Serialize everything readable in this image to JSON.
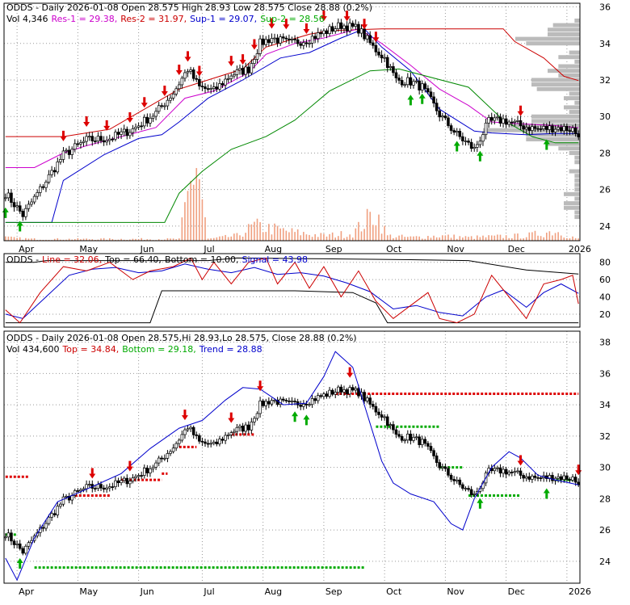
{
  "chart_data": [
    {
      "type": "candlestick",
      "panel": "price",
      "header": [
        {
          "text": "ODDS - Daily 2026-01-08 Open 28.575  High 28.93  Low 28.575  Close 28.88 (0.2%)",
          "color": "#000000"
        }
      ],
      "header2": [
        {
          "text": "Vol 4,346",
          "color": "#000000"
        },
        {
          "text": "Res-1 = 29.38,",
          "color": "#cc00cc"
        },
        {
          "text": "Res-2 = 31.97,",
          "color": "#cc0000"
        },
        {
          "text": "Sup-1 = 29.07,",
          "color": "#0000cc"
        },
        {
          "text": "Sup-2 = 28.56",
          "color": "#00aa00"
        }
      ],
      "ylim": [
        23.2,
        36.2
      ],
      "y_ticks": [
        24,
        26,
        28,
        30,
        32,
        34,
        36
      ],
      "x_ticks": [
        "Apr",
        "May",
        "Jun",
        "Jul",
        "Aug",
        "Sep",
        "Oct",
        "Nov",
        "Dec",
        "2026"
      ],
      "x_tick_index": [
        4,
        25,
        46,
        68,
        89,
        110,
        131,
        152,
        173,
        194
      ],
      "n_bars": 199,
      "anchors": [
        [
          0,
          25.8
        ],
        [
          6,
          24.6
        ],
        [
          12,
          26.0
        ],
        [
          20,
          27.9
        ],
        [
          28,
          28.7
        ],
        [
          36,
          28.8
        ],
        [
          44,
          29.3
        ],
        [
          52,
          30.2
        ],
        [
          58,
          31.3
        ],
        [
          63,
          32.6
        ],
        [
          67,
          31.6
        ],
        [
          72,
          31.4
        ],
        [
          78,
          32.3
        ],
        [
          84,
          32.6
        ],
        [
          88,
          34.0
        ],
        [
          92,
          34.3
        ],
        [
          98,
          34.0
        ],
        [
          104,
          34.2
        ],
        [
          110,
          34.6
        ],
        [
          116,
          35.0
        ],
        [
          122,
          34.8
        ],
        [
          127,
          33.8
        ],
        [
          131,
          33.2
        ],
        [
          135,
          32.0
        ],
        [
          140,
          31.9
        ],
        [
          144,
          31.6
        ],
        [
          150,
          30.1
        ],
        [
          156,
          29.0
        ],
        [
          162,
          28.2
        ],
        [
          167,
          29.7
        ],
        [
          172,
          29.8
        ],
        [
          178,
          29.5
        ],
        [
          184,
          29.3
        ],
        [
          190,
          29.4
        ],
        [
          196,
          29.3
        ],
        [
          198,
          28.88
        ]
      ],
      "up_arrows": [
        0,
        5,
        140,
        144,
        156,
        164,
        187
      ],
      "down_arrows": [
        20,
        28,
        35,
        43,
        48,
        55,
        60,
        63,
        67,
        78,
        82,
        86,
        92,
        97,
        104,
        110,
        118,
        124,
        128,
        178
      ],
      "res1_line": [
        [
          0,
          27.2
        ],
        [
          10,
          27.2
        ],
        [
          20,
          28.0
        ],
        [
          28,
          28.4
        ],
        [
          40,
          28.9
        ],
        [
          52,
          29.4
        ],
        [
          62,
          31.0
        ],
        [
          72,
          31.4
        ],
        [
          84,
          32.4
        ],
        [
          90,
          33.4
        ],
        [
          100,
          34.0
        ],
        [
          110,
          34.3
        ],
        [
          122,
          34.8
        ],
        [
          130,
          34.0
        ],
        [
          140,
          32.8
        ],
        [
          150,
          31.5
        ],
        [
          160,
          30.6
        ],
        [
          168,
          29.7
        ],
        [
          178,
          29.6
        ],
        [
          190,
          29.5
        ],
        [
          198,
          29.38
        ]
      ],
      "res2_line": [
        [
          0,
          28.9
        ],
        [
          20,
          28.9
        ],
        [
          36,
          29.3
        ],
        [
          60,
          31.5
        ],
        [
          70,
          32.0
        ],
        [
          82,
          32.6
        ],
        [
          90,
          33.8
        ],
        [
          105,
          34.5
        ],
        [
          112,
          34.7
        ],
        [
          130,
          34.8
        ],
        [
          160,
          34.8
        ],
        [
          172,
          34.8
        ],
        [
          176,
          34.1
        ],
        [
          186,
          33.2
        ],
        [
          193,
          32.2
        ],
        [
          198,
          31.97
        ]
      ],
      "sup1_line": [
        [
          0,
          24.2
        ],
        [
          10,
          24.2
        ],
        [
          16,
          24.2
        ],
        [
          20,
          26.5
        ],
        [
          34,
          27.9
        ],
        [
          46,
          28.8
        ],
        [
          54,
          29.0
        ],
        [
          60,
          29.7
        ],
        [
          70,
          31.0
        ],
        [
          82,
          32.0
        ],
        [
          95,
          33.2
        ],
        [
          105,
          33.5
        ],
        [
          116,
          34.3
        ],
        [
          124,
          34.8
        ],
        [
          130,
          33.8
        ],
        [
          140,
          32.5
        ],
        [
          150,
          30.4
        ],
        [
          162,
          29.2
        ],
        [
          168,
          29.1
        ],
        [
          180,
          29.0
        ],
        [
          190,
          29.07
        ],
        [
          198,
          29.07
        ]
      ],
      "sup2_line": [
        [
          0,
          24.2
        ],
        [
          55,
          24.2
        ],
        [
          60,
          25.8
        ],
        [
          68,
          27.0
        ],
        [
          78,
          28.2
        ],
        [
          90,
          28.9
        ],
        [
          100,
          29.8
        ],
        [
          112,
          31.4
        ],
        [
          126,
          32.5
        ],
        [
          136,
          32.6
        ],
        [
          160,
          31.6
        ],
        [
          172,
          29.8
        ],
        [
          182,
          28.9
        ],
        [
          190,
          28.56
        ],
        [
          198,
          28.56
        ]
      ],
      "volume": [
        [
          0,
          4
        ],
        [
          3,
          3
        ],
        [
          10,
          2
        ],
        [
          20,
          2
        ],
        [
          30,
          2
        ],
        [
          40,
          2
        ],
        [
          50,
          2
        ],
        [
          60,
          2
        ],
        [
          66,
          100
        ],
        [
          70,
          2
        ],
        [
          80,
          6
        ],
        [
          86,
          18
        ],
        [
          100,
          10
        ],
        [
          110,
          6
        ],
        [
          120,
          9
        ],
        [
          128,
          35
        ],
        [
          132,
          6
        ],
        [
          140,
          4
        ],
        [
          150,
          6
        ],
        [
          160,
          4
        ],
        [
          170,
          5
        ],
        [
          180,
          6
        ],
        [
          190,
          12
        ],
        [
          198,
          2
        ]
      ]
    },
    {
      "type": "line",
      "panel": "oscillator",
      "header": [
        {
          "text": "ODDS -",
          "color": "#000000"
        },
        {
          "text": "Line = 32.06,",
          "color": "#cc0000"
        },
        {
          "text": "Top = 66.40,",
          "color": "#000000"
        },
        {
          "text": "Bottom = 10.00,",
          "color": "#000000"
        },
        {
          "text": "Signal = 43.98",
          "color": "#0000cc"
        }
      ],
      "ylim": [
        5,
        90
      ],
      "y_ticks": [
        20,
        40,
        60,
        80
      ],
      "line": [
        [
          0,
          25
        ],
        [
          5,
          10
        ],
        [
          12,
          45
        ],
        [
          20,
          75
        ],
        [
          28,
          70
        ],
        [
          36,
          80
        ],
        [
          44,
          60
        ],
        [
          50,
          70
        ],
        [
          58,
          75
        ],
        [
          64,
          85
        ],
        [
          68,
          60
        ],
        [
          72,
          80
        ],
        [
          78,
          55
        ],
        [
          84,
          80
        ],
        [
          90,
          85
        ],
        [
          94,
          55
        ],
        [
          100,
          80
        ],
        [
          105,
          50
        ],
        [
          110,
          75
        ],
        [
          116,
          40
        ],
        [
          122,
          70
        ],
        [
          128,
          35
        ],
        [
          134,
          15
        ],
        [
          140,
          30
        ],
        [
          146,
          45
        ],
        [
          150,
          15
        ],
        [
          156,
          10
        ],
        [
          162,
          20
        ],
        [
          168,
          65
        ],
        [
          174,
          40
        ],
        [
          180,
          15
        ],
        [
          186,
          55
        ],
        [
          192,
          60
        ],
        [
          196,
          65
        ],
        [
          198,
          32
        ]
      ],
      "signal": [
        [
          0,
          20
        ],
        [
          6,
          15
        ],
        [
          14,
          40
        ],
        [
          22,
          65
        ],
        [
          30,
          72
        ],
        [
          38,
          74
        ],
        [
          46,
          68
        ],
        [
          54,
          70
        ],
        [
          62,
          78
        ],
        [
          70,
          72
        ],
        [
          78,
          68
        ],
        [
          86,
          74
        ],
        [
          94,
          66
        ],
        [
          102,
          68
        ],
        [
          110,
          64
        ],
        [
          118,
          56
        ],
        [
          126,
          46
        ],
        [
          134,
          26
        ],
        [
          142,
          30
        ],
        [
          150,
          22
        ],
        [
          158,
          18
        ],
        [
          166,
          40
        ],
        [
          172,
          48
        ],
        [
          180,
          28
        ],
        [
          186,
          45
        ],
        [
          192,
          55
        ],
        [
          198,
          44
        ]
      ],
      "top": [
        [
          0,
          80
        ],
        [
          10,
          80
        ],
        [
          14,
          82
        ],
        [
          70,
          82
        ],
        [
          80,
          85
        ],
        [
          110,
          84
        ],
        [
          140,
          83
        ],
        [
          160,
          82
        ],
        [
          180,
          71
        ],
        [
          198,
          66.4
        ]
      ],
      "bottom": [
        [
          0,
          10
        ],
        [
          50,
          10
        ],
        [
          54,
          47
        ],
        [
          100,
          47
        ],
        [
          120,
          45
        ],
        [
          128,
          33
        ],
        [
          132,
          10
        ],
        [
          198,
          10
        ]
      ]
    },
    {
      "type": "candlestick",
      "panel": "trend",
      "header": [
        {
          "text": "ODDS - Daily 2026-01-08 Open 28.575,Hi 28.93,Lo 28.575,  Close 28.88 (0.2%)",
          "color": "#000000"
        }
      ],
      "header2": [
        {
          "text": "Vol 434,600",
          "color": "#000000"
        },
        {
          "text": "Top = 34.84,",
          "color": "#cc0000"
        },
        {
          "text": "Bottom = 29.18,",
          "color": "#00aa00"
        },
        {
          "text": "Trend = 28.88",
          "color": "#0000cc"
        }
      ],
      "ylim": [
        22.6,
        38.7
      ],
      "y_ticks": [
        24,
        26,
        28,
        30,
        32,
        34,
        36,
        38
      ],
      "x_ticks": [
        "Apr",
        "May",
        "Jun",
        "Jul",
        "Aug",
        "Sep",
        "Oct",
        "Nov",
        "Dec",
        "2026"
      ],
      "up_arrows": [
        5,
        100,
        104,
        164,
        187
      ],
      "down_arrows": [
        30,
        43,
        62,
        78,
        88,
        119,
        178,
        198
      ],
      "trend_line": [
        [
          0,
          24.2
        ],
        [
          4,
          22.8
        ],
        [
          10,
          25.5
        ],
        [
          18,
          27.8
        ],
        [
          28,
          28.6
        ],
        [
          40,
          29.6
        ],
        [
          50,
          31.2
        ],
        [
          60,
          32.5
        ],
        [
          68,
          33.0
        ],
        [
          76,
          34.3
        ],
        [
          82,
          35.1
        ],
        [
          88,
          35.0
        ],
        [
          96,
          34.0
        ],
        [
          104,
          34.1
        ],
        [
          110,
          35.8
        ],
        [
          114,
          37.4
        ],
        [
          120,
          36.4
        ],
        [
          126,
          32.8
        ],
        [
          130,
          30.4
        ],
        [
          134,
          29.0
        ],
        [
          140,
          28.3
        ],
        [
          148,
          27.8
        ],
        [
          154,
          26.4
        ],
        [
          158,
          26.0
        ],
        [
          162,
          28.0
        ],
        [
          168,
          30.0
        ],
        [
          174,
          31.0
        ],
        [
          178,
          30.6
        ],
        [
          184,
          29.5
        ],
        [
          190,
          29.2
        ],
        [
          198,
          28.88
        ]
      ],
      "resistance_segments": [
        [
          [
            0,
            29.4
          ],
          [
            8,
            29.4
          ]
        ],
        [
          [
            24,
            28.2
          ],
          [
            36,
            28.2
          ]
        ],
        [
          [
            40,
            29.2
          ],
          [
            54,
            29.2
          ]
        ],
        [
          [
            54,
            29.6
          ],
          [
            56,
            29.6
          ]
        ],
        [
          [
            60,
            31.3
          ],
          [
            66,
            31.3
          ]
        ],
        [
          [
            78,
            32.1
          ],
          [
            86,
            32.1
          ]
        ],
        [
          [
            114,
            34.7
          ],
          [
            198,
            34.7
          ]
        ]
      ],
      "support_segments": [
        [
          [
            0,
            25.7
          ],
          [
            4,
            25.7
          ]
        ],
        [
          [
            10,
            23.6
          ],
          [
            124,
            23.6
          ]
        ],
        [
          [
            128,
            32.6
          ],
          [
            150,
            32.6
          ]
        ],
        [
          [
            150,
            30.0
          ],
          [
            158,
            30.0
          ]
        ],
        [
          [
            160,
            28.2
          ],
          [
            178,
            28.2
          ]
        ],
        [
          [
            190,
            29.2
          ],
          [
            196,
            29.2
          ]
        ]
      ]
    }
  ]
}
